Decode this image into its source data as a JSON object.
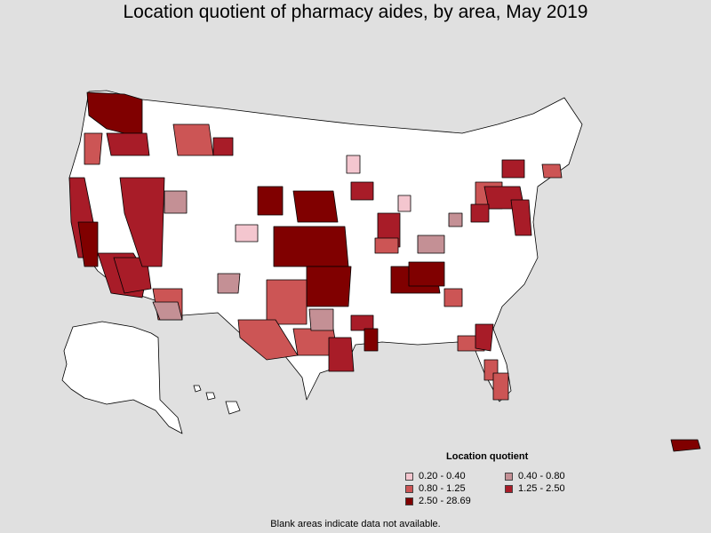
{
  "title": "Location quotient of pharmacy aides, by area, May 2019",
  "legend": {
    "title": "Location quotient",
    "items": [
      {
        "label": "0.20 - 0.40",
        "color": "#f4c6cf"
      },
      {
        "label": "0.40 - 0.80",
        "color": "#c49095"
      },
      {
        "label": "0.80 - 1.25",
        "color": "#cc5555"
      },
      {
        "label": "1.25 - 2.50",
        "color": "#a81c28"
      },
      {
        "label": "2.50 - 28.69",
        "color": "#800000"
      }
    ]
  },
  "footnote": "Blank areas indicate data not available.",
  "colors": {
    "background": "#e0e0e0",
    "no_data": "#ffffff",
    "border": "#000000"
  }
}
